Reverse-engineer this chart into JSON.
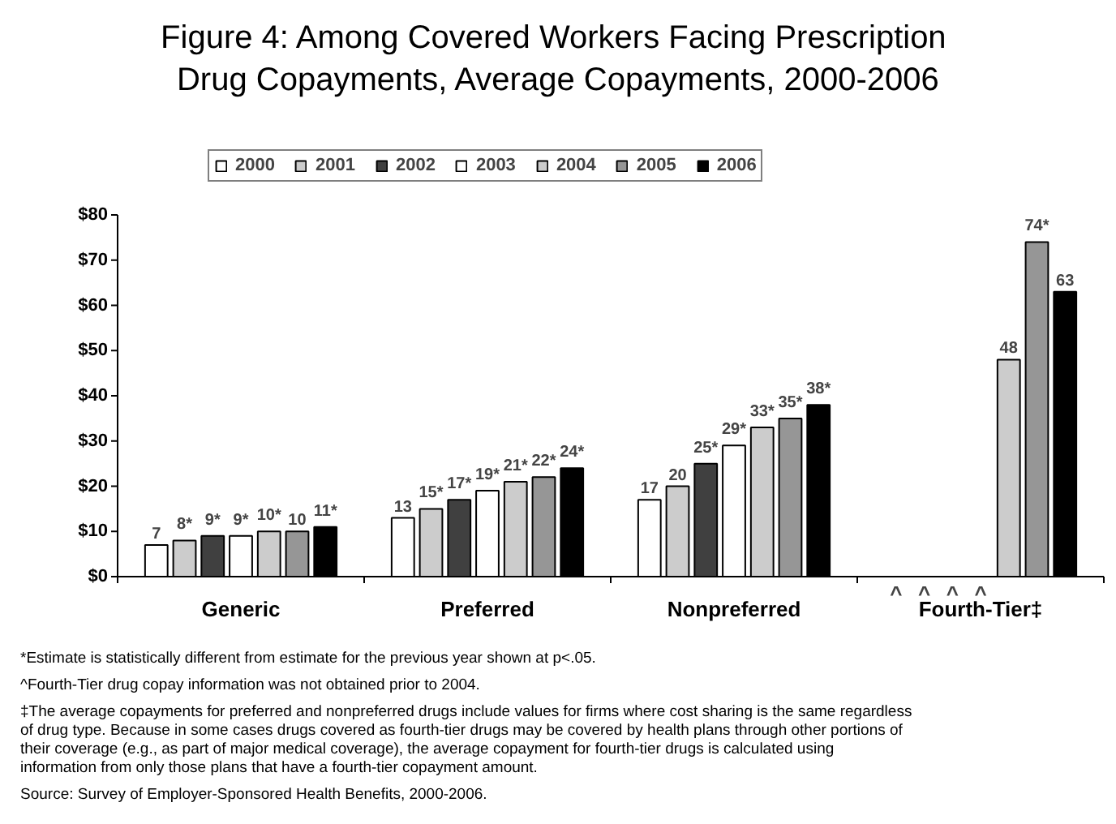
{
  "chart_data": {
    "type": "bar",
    "title": "Figure 4:  Among Covered Workers Facing Prescription Drug Copayments, Average Copayments, 2000-2006",
    "categories": [
      "Generic",
      "Preferred",
      "Nonpreferred",
      "Fourth-Tier‡"
    ],
    "series": [
      {
        "name": "2000",
        "color": "#ffffff",
        "values": [
          7,
          13,
          17,
          null
        ],
        "value_labels": [
          "7",
          "13",
          "17",
          "^"
        ]
      },
      {
        "name": "2001",
        "color": "#cccccc",
        "values": [
          8,
          15,
          20,
          null
        ],
        "value_labels": [
          "8*",
          "15*",
          "20",
          "^"
        ]
      },
      {
        "name": "2002",
        "color": "#404040",
        "values": [
          9,
          17,
          25,
          null
        ],
        "value_labels": [
          "9*",
          "17*",
          "25*",
          "^"
        ]
      },
      {
        "name": "2003",
        "color": "#ffffff",
        "values": [
          9,
          19,
          29,
          null
        ],
        "value_labels": [
          "9*",
          "19*",
          "29*",
          "^"
        ]
      },
      {
        "name": "2004",
        "color": "#cccccc",
        "values": [
          10,
          21,
          33,
          48
        ],
        "value_labels": [
          "10*",
          "21*",
          "33*",
          "48"
        ]
      },
      {
        "name": "2005",
        "color": "#969696",
        "values": [
          10,
          22,
          35,
          74
        ],
        "value_labels": [
          "10",
          "22*",
          "35*",
          "74*"
        ]
      },
      {
        "name": "2006",
        "color": "#000000",
        "values": [
          11,
          24,
          38,
          63
        ],
        "value_labels": [
          "11*",
          "24*",
          "38*",
          "63"
        ]
      }
    ],
    "ylim": [
      0,
      80
    ],
    "yticks": [
      {
        "value": 0,
        "label": "$0"
      },
      {
        "value": 10,
        "label": "$10"
      },
      {
        "value": 20,
        "label": "$20"
      },
      {
        "value": 30,
        "label": "$30"
      },
      {
        "value": 40,
        "label": "$40"
      },
      {
        "value": 50,
        "label": "$50"
      },
      {
        "value": 60,
        "label": "$60"
      },
      {
        "value": 70,
        "label": "$70"
      },
      {
        "value": 80,
        "label": "$80"
      }
    ],
    "grid": false,
    "legend": "top",
    "annotations": [
      "*Estimate is statistically different from estimate for the previous year shown at p<.05.",
      "^Fourth-Tier drug copay information was not obtained prior to 2004.",
      "‡The average copayments for preferred and nonpreferred drugs include values for firms where cost sharing is the same regardless of drug type. Because in some cases drugs covered as fourth-tier drugs may be covered by health plans through other portions of their coverage (e.g., as part of major medical coverage), the average copayment for fourth-tier drugs is calculated using information from only those plans that have a fourth-tier copayment amount.",
      "Source: Survey of Employer-Sponsored Health Benefits, 2000-2006."
    ]
  }
}
